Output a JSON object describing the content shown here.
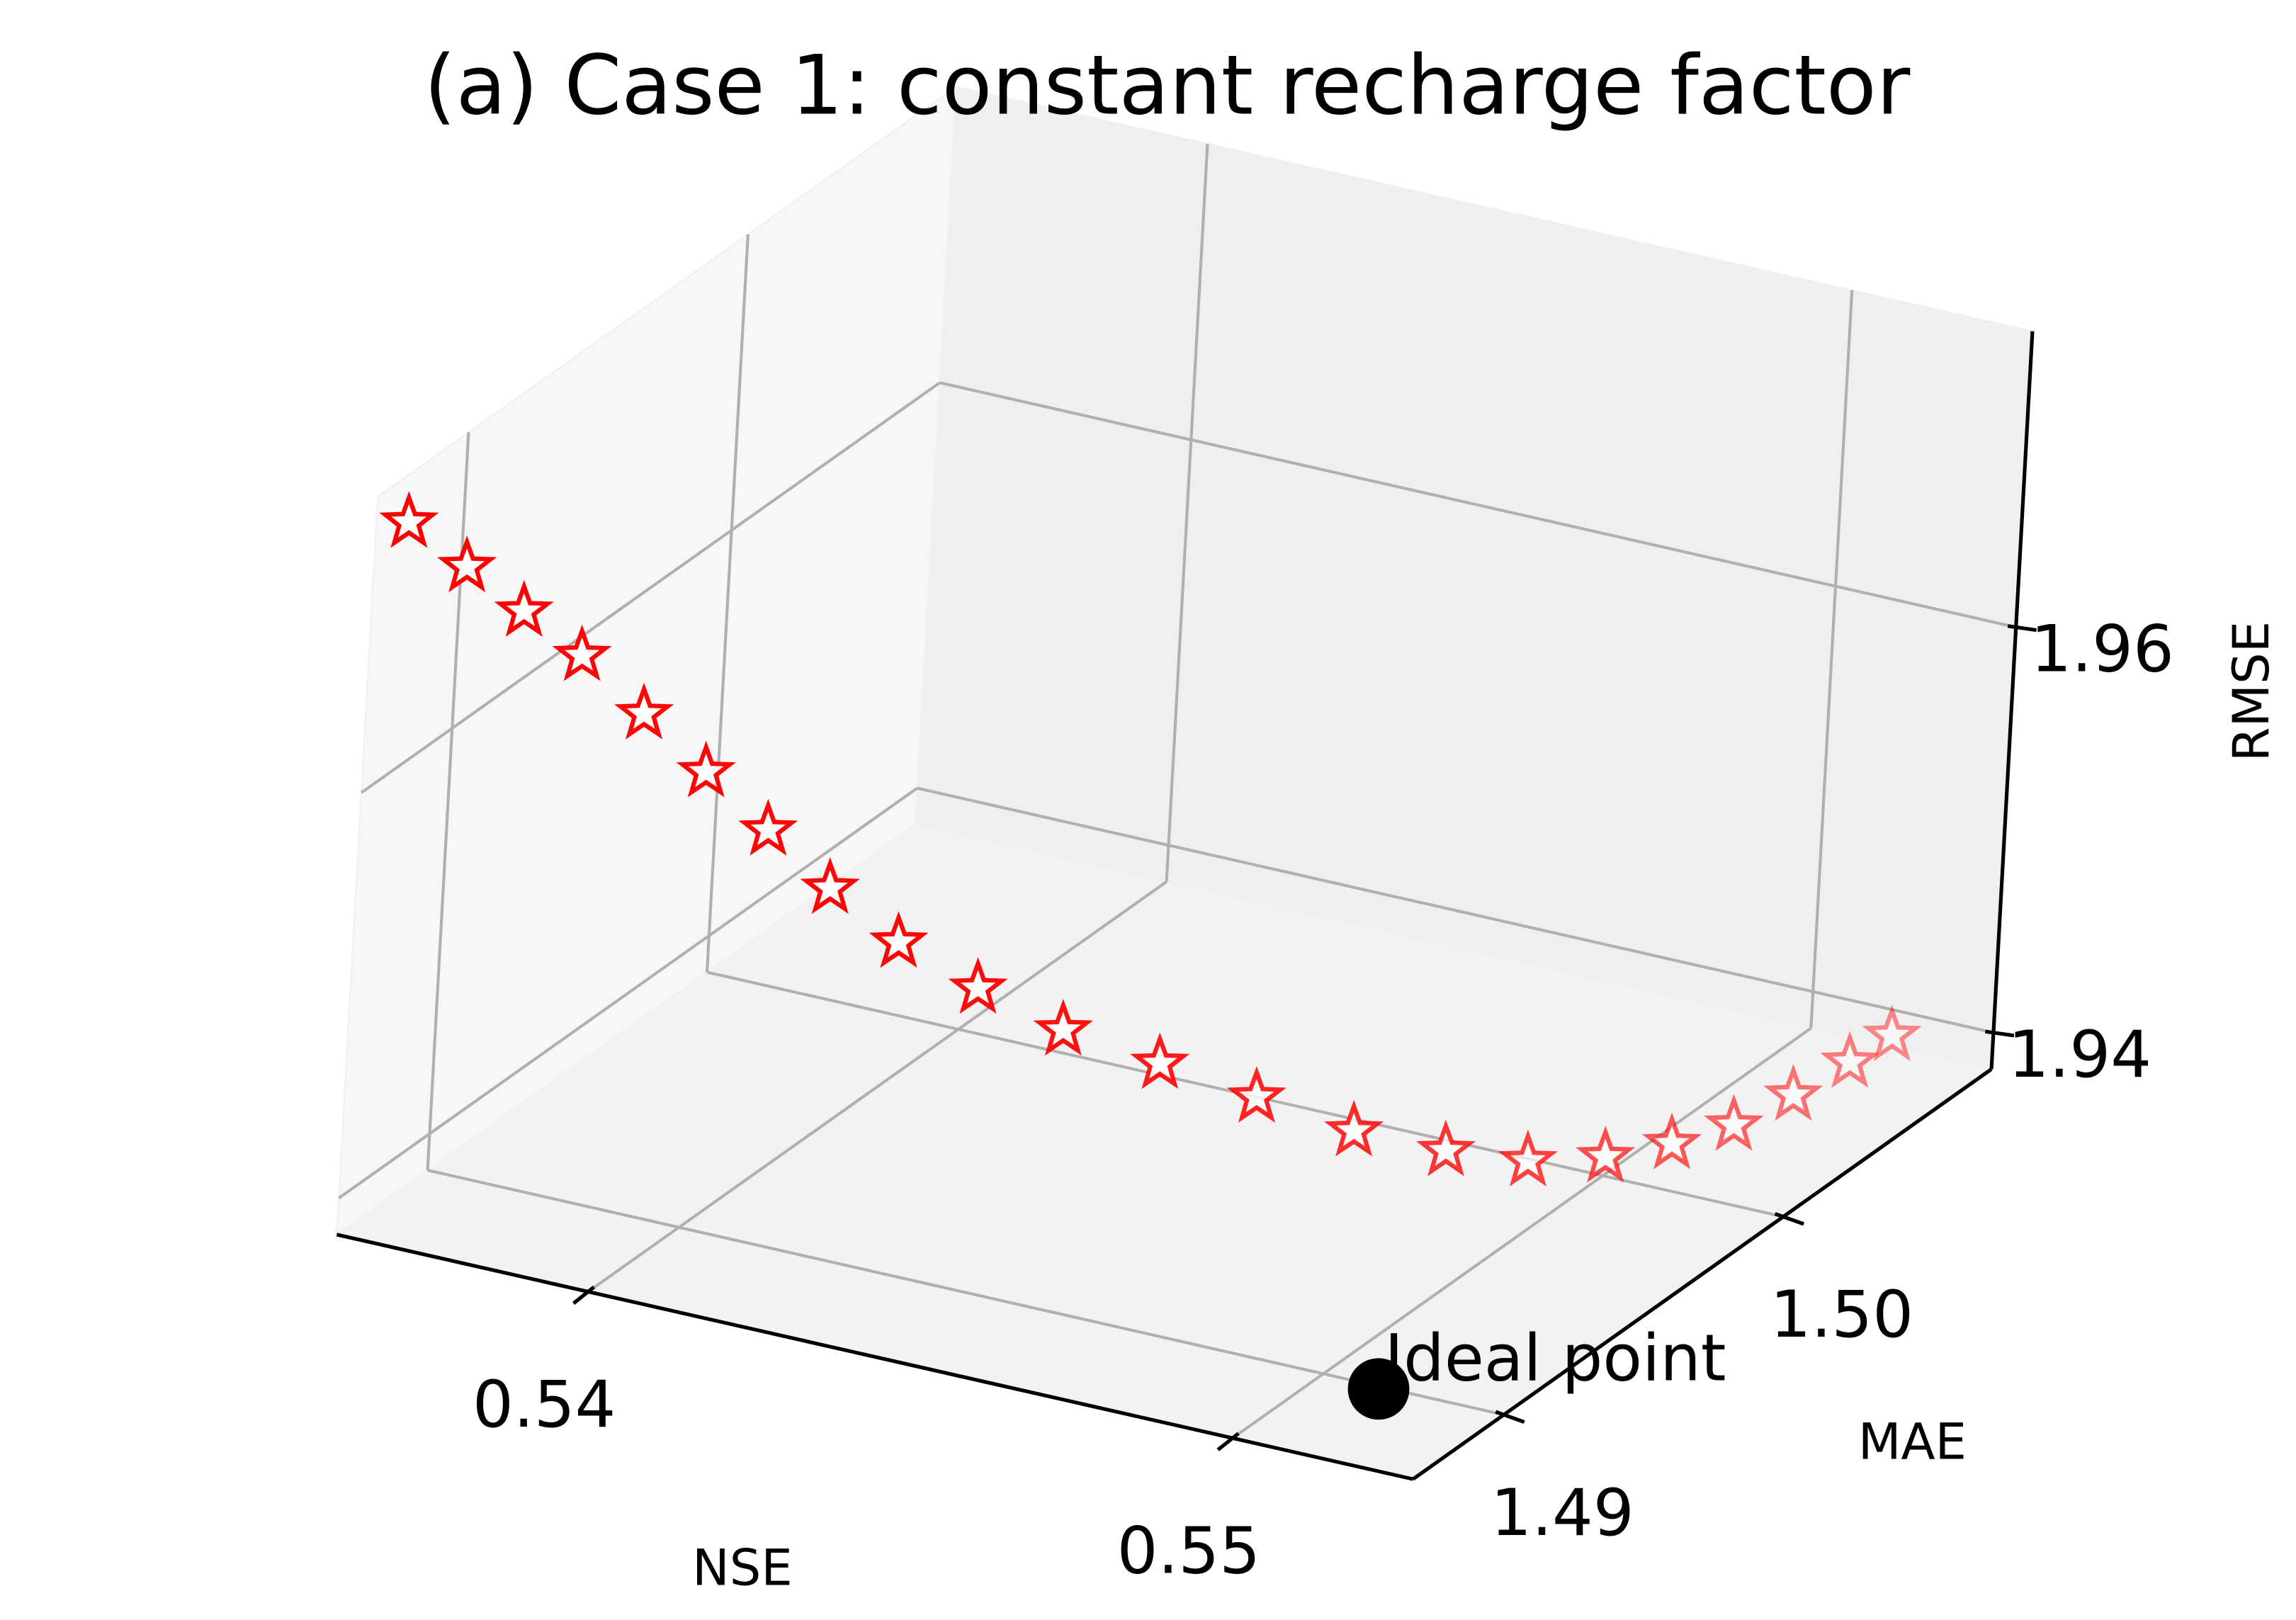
{
  "chart_data": {
    "type": "scatter3d",
    "title": "(a) Case 1: constant recharge factor",
    "xlabel": "NSE",
    "ylabel": "MAE",
    "zlabel": "RMSE",
    "xlim": [
      0.5361,
      0.5528
    ],
    "ylim": [
      1.48675,
      1.50745
    ],
    "zlim": [
      1.9382,
      1.9746
    ],
    "xticks": [
      0.54,
      0.55
    ],
    "yticks": [
      1.49,
      {
        "value": 1.5,
        "label": "1.50"
      }
    ],
    "zticks": [
      1.94,
      1.96
    ],
    "grid": true,
    "series": [
      {
        "color": "#ff0000",
        "marker": "star",
        "x": [
          0.5366,
          0.53744,
          0.53827,
          0.53911,
          0.54011,
          0.54111,
          0.54211,
          0.54311,
          0.54412,
          0.54512,
          0.54612,
          0.54712,
          0.54812,
          0.54913,
          0.54996,
          0.55063,
          0.55113,
          0.55146,
          0.55171,
          0.55183,
          0.5519,
          0.55193
        ],
        "y": [
          1.48675,
          1.48696,
          1.48716,
          1.48737,
          1.48737,
          1.48737,
          1.48737,
          1.48737,
          1.48758,
          1.4882,
          1.48903,
          1.49027,
          1.49151,
          1.49275,
          1.4942,
          1.49565,
          1.49731,
          1.49896,
          1.50062,
          1.50248,
          1.50435,
          1.50579
        ],
        "z": [
          1.97369,
          1.9719,
          1.97011,
          1.96832,
          1.96617,
          1.96403,
          1.96188,
          1.95973,
          1.95759,
          1.95544,
          1.95329,
          1.95115,
          1.949,
          1.94685,
          1.94506,
          1.94363,
          1.94256,
          1.94184,
          1.94131,
          1.94106,
          1.94091,
          1.94084
        ]
      }
    ],
    "ideal_point": {
      "label": "Ideal point",
      "color": "#000000",
      "x": 0.5509,
      "y": 1.4899,
      "z": 1.9382
    }
  }
}
